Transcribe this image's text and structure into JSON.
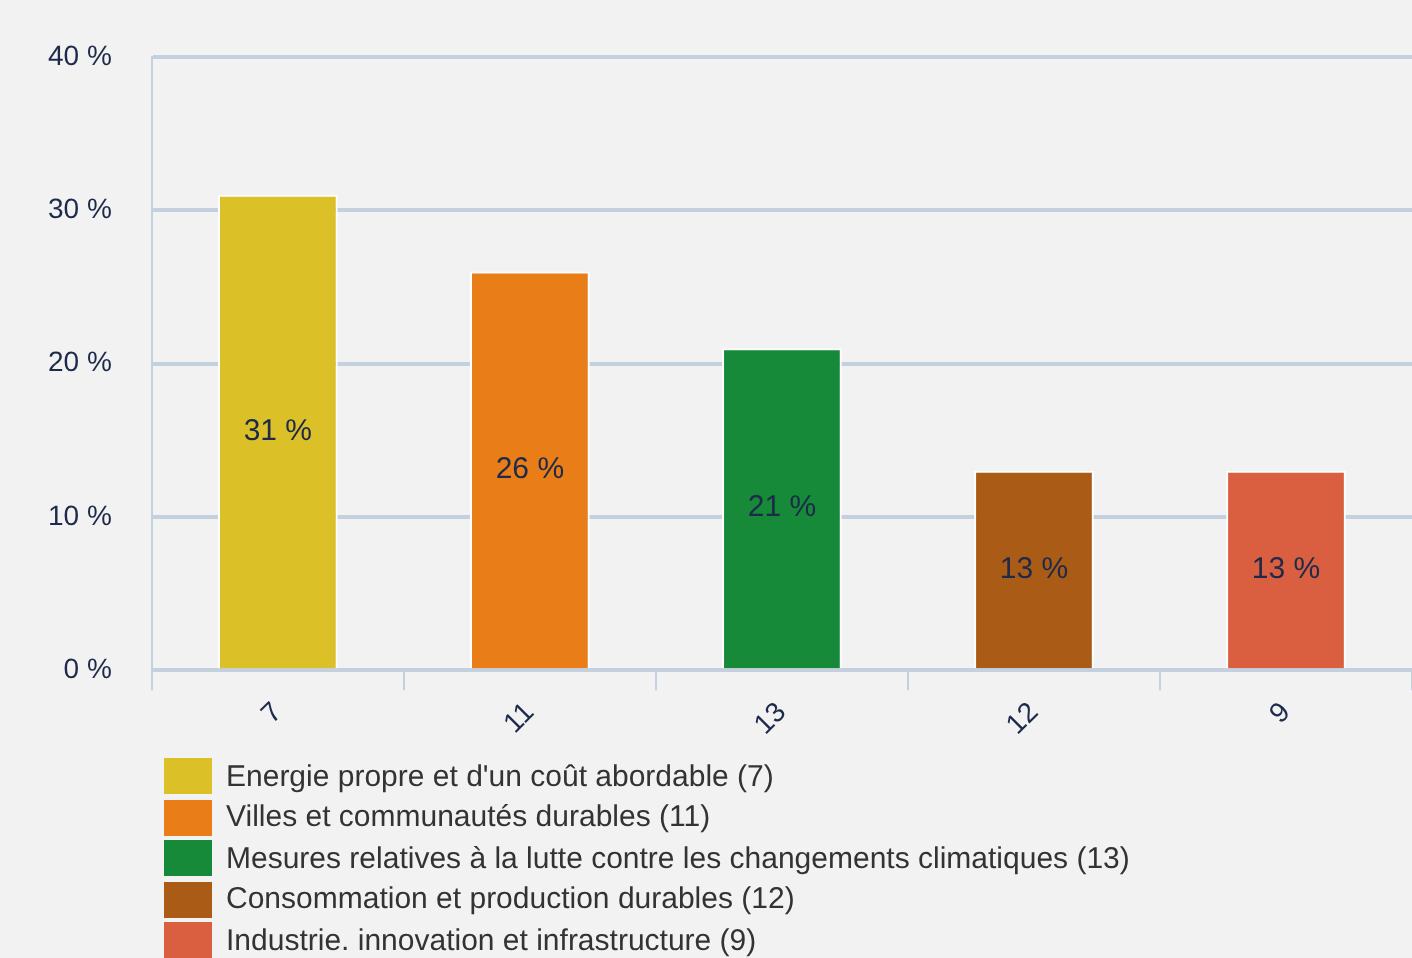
{
  "chart_data": {
    "type": "bar",
    "categories": [
      "7",
      "11",
      "13",
      "12",
      "9"
    ],
    "series": [
      {
        "name": "Energie propre et d'un coût abordable (7)",
        "color": "#dbc027",
        "values": [
          31,
          null,
          null,
          null,
          null
        ],
        "value_labels": [
          "31 %",
          null,
          null,
          null,
          null
        ]
      },
      {
        "name": "Villes et communautés durables (11)",
        "color": "#e97d17",
        "values": [
          null,
          26,
          null,
          null,
          null
        ],
        "value_labels": [
          null,
          "26 %",
          null,
          null,
          null
        ]
      },
      {
        "name": "Mesures relatives à la lutte contre les changements climatiques (13)",
        "color": "#168a38",
        "values": [
          null,
          null,
          21,
          null,
          null
        ],
        "value_labels": [
          null,
          null,
          "21 %",
          null,
          null
        ]
      },
      {
        "name": "Consommation et production durables (12)",
        "color": "#aa5c16",
        "values": [
          null,
          null,
          null,
          13,
          null
        ],
        "value_labels": [
          null,
          null,
          null,
          "13 %",
          null
        ]
      },
      {
        "name": "Industrie. innovation et infrastructure (9)",
        "color": "#d95f40",
        "values": [
          null,
          null,
          null,
          null,
          13
        ],
        "value_labels": [
          null,
          null,
          null,
          null,
          "13 %"
        ]
      }
    ],
    "ylim": [
      0,
      40
    ],
    "yticks": [
      {
        "value": 0,
        "label": "0 %"
      },
      {
        "value": 10,
        "label": "10 %"
      },
      {
        "value": 20,
        "label": "20 %"
      },
      {
        "value": 30,
        "label": "30 %"
      },
      {
        "value": 40,
        "label": "40 %"
      }
    ],
    "grid": "y",
    "legend": "bottom"
  }
}
